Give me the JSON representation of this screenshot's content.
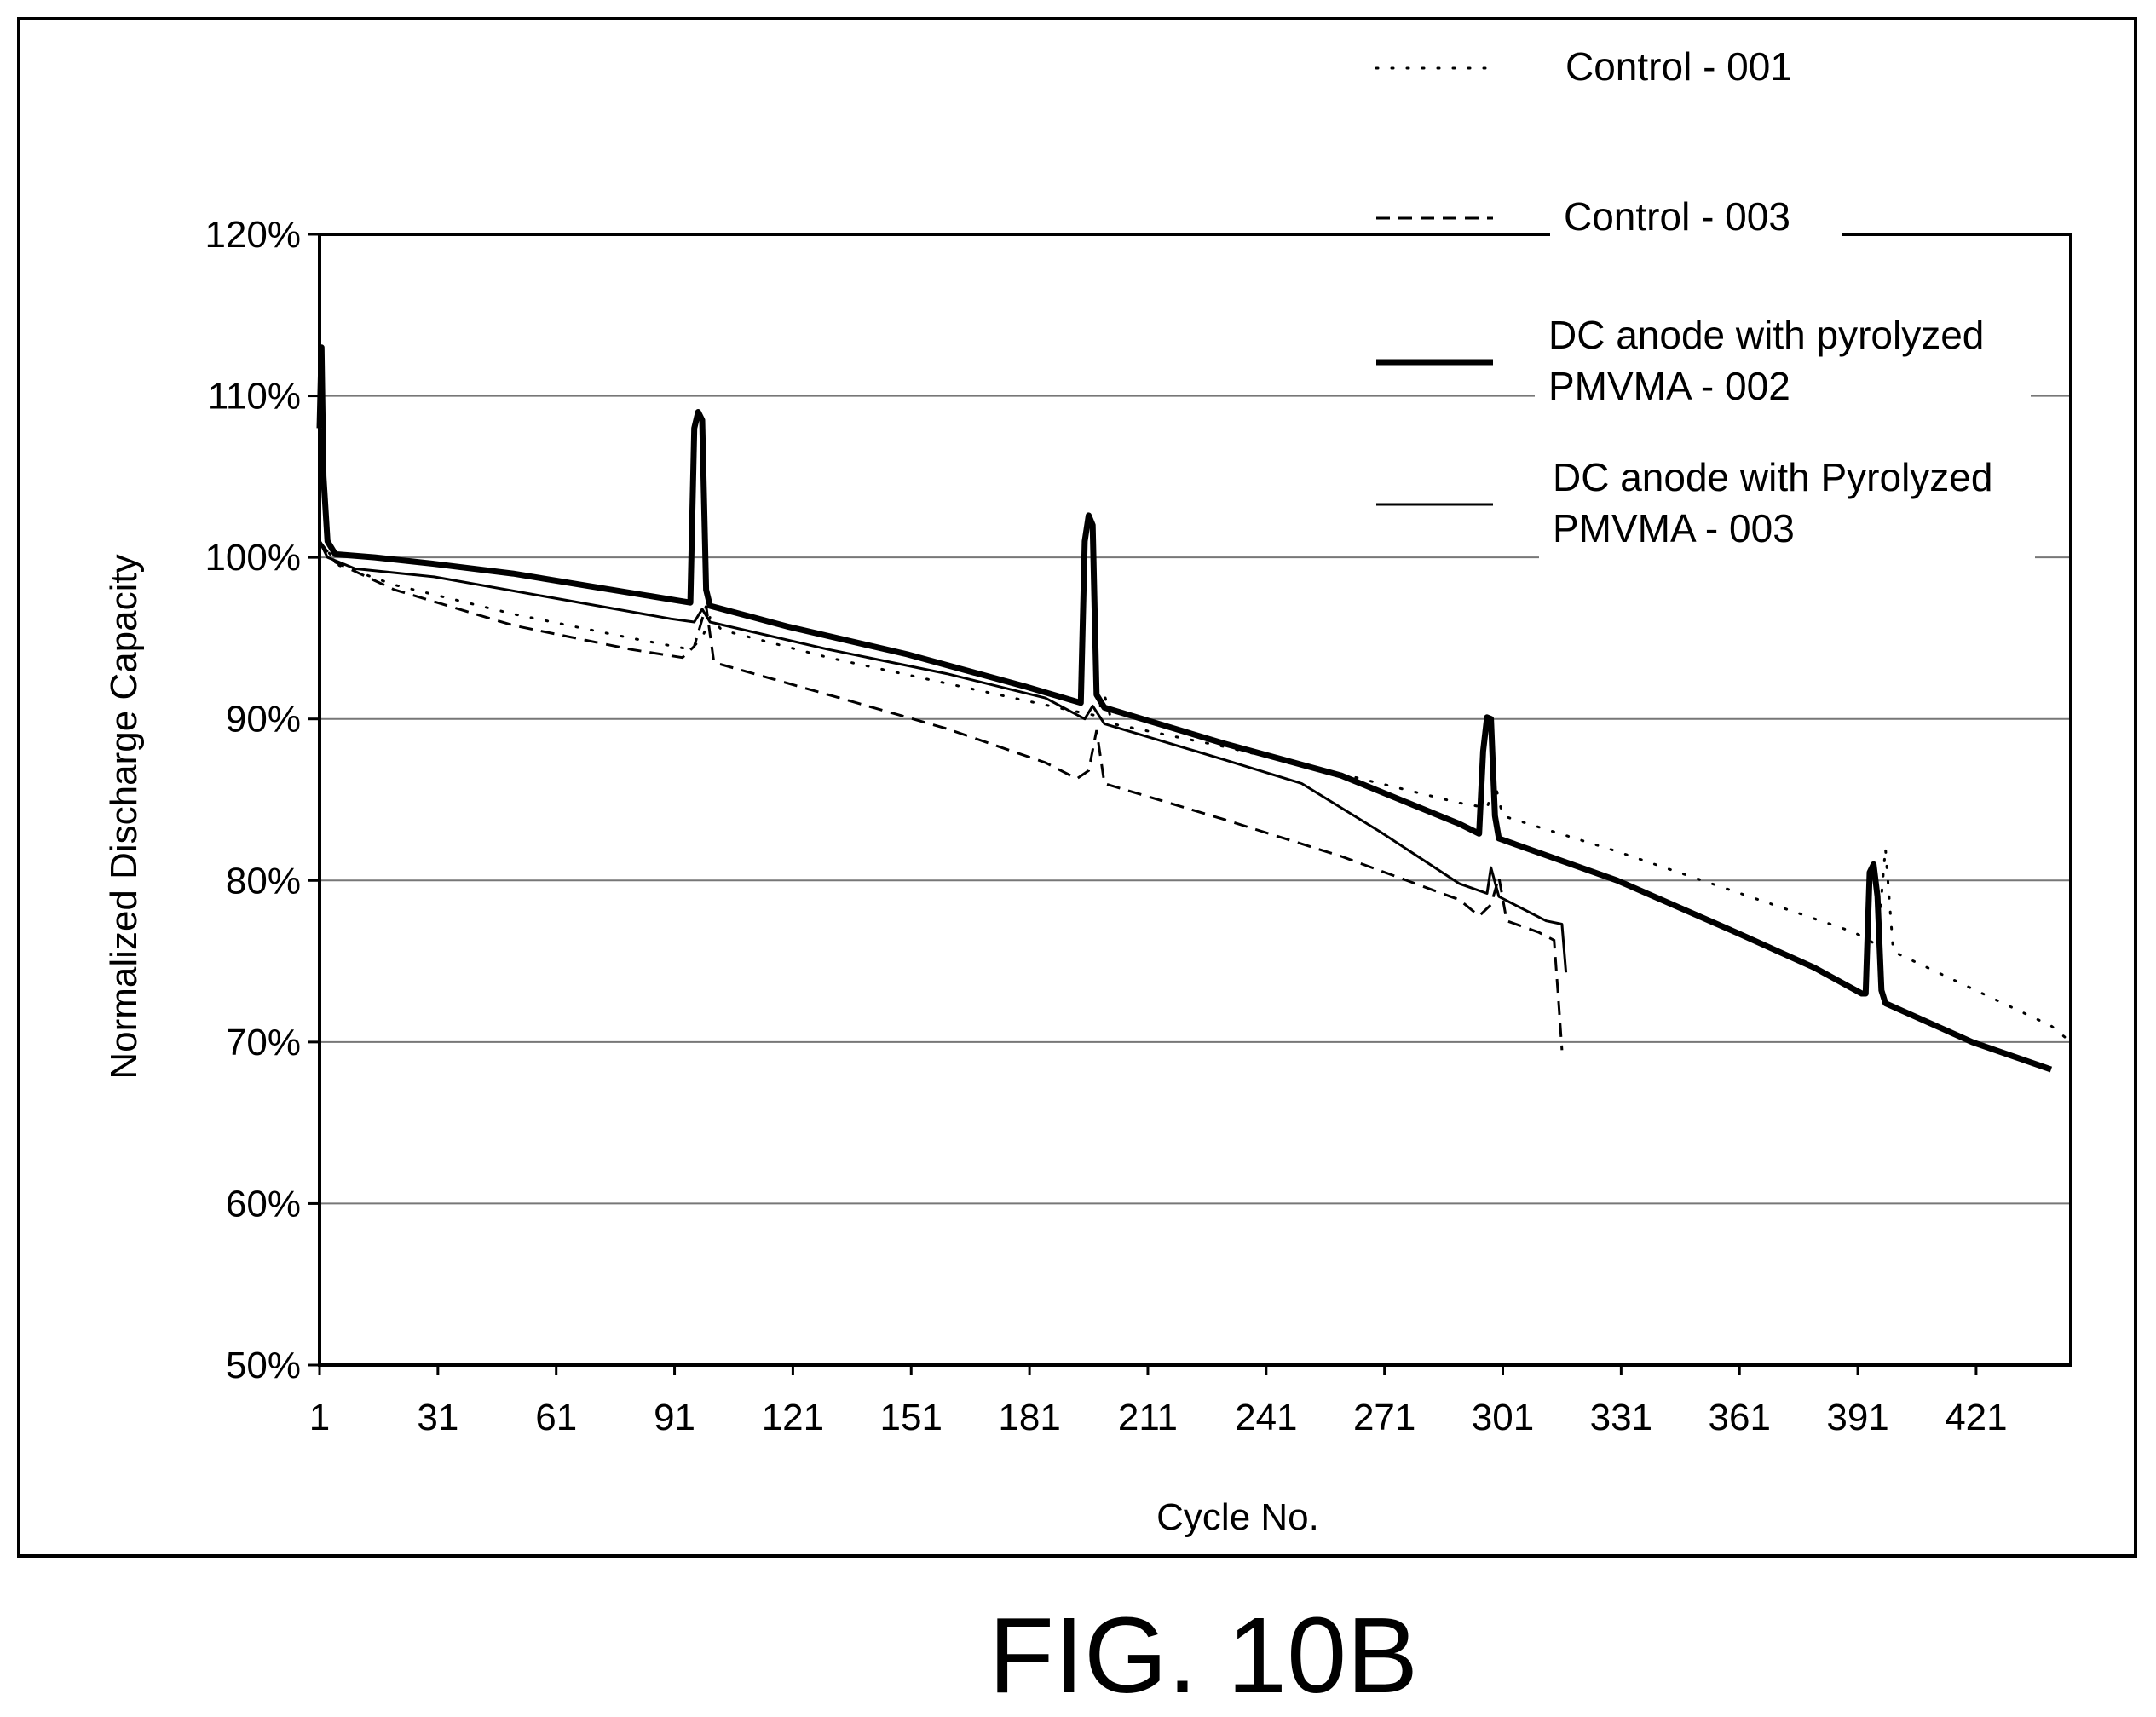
{
  "figure_label": "FIG. 10B",
  "chart_data": {
    "type": "line",
    "title": "",
    "xlabel": "Cycle No.",
    "ylabel": "Normalized Discharge Capacity",
    "xlim": [
      1,
      445
    ],
    "ylim": [
      50,
      120
    ],
    "x_ticks": [
      1,
      31,
      61,
      91,
      121,
      151,
      181,
      211,
      241,
      271,
      301,
      331,
      361,
      391,
      421
    ],
    "x_tick_labels": [
      "1",
      "31",
      "61",
      "91",
      "121",
      "151",
      "181",
      "211",
      "241",
      "271",
      "301",
      "331",
      "361",
      "391",
      "421"
    ],
    "y_ticks": [
      50,
      60,
      70,
      80,
      90,
      100,
      110,
      120
    ],
    "y_tick_labels": [
      "50%",
      "60%",
      "70%",
      "80%",
      "90%",
      "100%",
      "110%",
      "120%"
    ],
    "grid": "horizontal",
    "legend_position": "top-right",
    "series": [
      {
        "name": "Control - 001",
        "style": "dotted",
        "color": "#000000",
        "points": [
          [
            1,
            101
          ],
          [
            6,
            99.5
          ],
          [
            20,
            98.3
          ],
          [
            50,
            96.5
          ],
          [
            80,
            95.0
          ],
          [
            95,
            94.3
          ],
          [
            98,
            95.0
          ],
          [
            100,
            96.3
          ],
          [
            103,
            95.5
          ],
          [
            130,
            93.8
          ],
          [
            160,
            92.2
          ],
          [
            190,
            90.6
          ],
          [
            198,
            90.2
          ],
          [
            200,
            91.5
          ],
          [
            202,
            89.7
          ],
          [
            230,
            88.3
          ],
          [
            260,
            86.6
          ],
          [
            290,
            84.8
          ],
          [
            297,
            84.5
          ],
          [
            299,
            86.0
          ],
          [
            301,
            84.0
          ],
          [
            330,
            81.8
          ],
          [
            360,
            79.3
          ],
          [
            390,
            76.8
          ],
          [
            396,
            76.0
          ],
          [
            398,
            82.0
          ],
          [
            400,
            75.6
          ],
          [
            420,
            73.3
          ],
          [
            440,
            71.0
          ],
          [
            445,
            70.0
          ]
        ]
      },
      {
        "name": "Control - 003",
        "style": "dashed",
        "color": "#000000",
        "points": [
          [
            1,
            101
          ],
          [
            5,
            99.7
          ],
          [
            20,
            98.0
          ],
          [
            50,
            95.8
          ],
          [
            80,
            94.3
          ],
          [
            93,
            93.8
          ],
          [
            96,
            94.5
          ],
          [
            99,
            97.0
          ],
          [
            101,
            93.5
          ],
          [
            130,
            91.5
          ],
          [
            160,
            89.4
          ],
          [
            185,
            87.3
          ],
          [
            193,
            86.3
          ],
          [
            196,
            86.8
          ],
          [
            198,
            89.3
          ],
          [
            200,
            86.0
          ],
          [
            230,
            83.8
          ],
          [
            260,
            81.5
          ],
          [
            290,
            78.8
          ],
          [
            295,
            77.8
          ],
          [
            298,
            78.5
          ],
          [
            300,
            80.2
          ],
          [
            302,
            77.5
          ],
          [
            310,
            76.8
          ],
          [
            314,
            76.3
          ],
          [
            315,
            73.0
          ],
          [
            316,
            69.5
          ]
        ]
      },
      {
        "name": "DC anode with pyrolyzed PMVMA - 002",
        "style": "thick",
        "color": "#000000",
        "points": [
          [
            1,
            108
          ],
          [
            1.5,
            113
          ],
          [
            2,
            105
          ],
          [
            3,
            101
          ],
          [
            5,
            100.2
          ],
          [
            15,
            100.0
          ],
          [
            30,
            99.6
          ],
          [
            50,
            99.0
          ],
          [
            70,
            98.2
          ],
          [
            90,
            97.4
          ],
          [
            95,
            97.2
          ],
          [
            96,
            108
          ],
          [
            97,
            109
          ],
          [
            98,
            108.5
          ],
          [
            99,
            98
          ],
          [
            100,
            97.0
          ],
          [
            120,
            95.7
          ],
          [
            150,
            94.0
          ],
          [
            180,
            92.0
          ],
          [
            194,
            91.0
          ],
          [
            195,
            101
          ],
          [
            196,
            102.6
          ],
          [
            197,
            102
          ],
          [
            198,
            91.5
          ],
          [
            200,
            90.7
          ],
          [
            230,
            88.5
          ],
          [
            260,
            86.5
          ],
          [
            290,
            83.5
          ],
          [
            295,
            82.9
          ],
          [
            296,
            88
          ],
          [
            297,
            90.1
          ],
          [
            298,
            90
          ],
          [
            299,
            84
          ],
          [
            300,
            82.6
          ],
          [
            330,
            80.0
          ],
          [
            360,
            76.8
          ],
          [
            380,
            74.6
          ],
          [
            392,
            73.0
          ],
          [
            393,
            73.0
          ],
          [
            394,
            80.5
          ],
          [
            395,
            81.0
          ],
          [
            396,
            79.0
          ],
          [
            397,
            73.2
          ],
          [
            398,
            72.4
          ],
          [
            420,
            70.0
          ],
          [
            440,
            68.3
          ]
        ]
      },
      {
        "name": "DC anode with Pyrolyzed PMVMA - 003",
        "style": "thin",
        "color": "#000000",
        "points": [
          [
            1,
            101
          ],
          [
            3,
            100.0
          ],
          [
            10,
            99.3
          ],
          [
            30,
            98.8
          ],
          [
            60,
            97.5
          ],
          [
            90,
            96.2
          ],
          [
            96,
            96.0
          ],
          [
            98,
            96.8
          ],
          [
            100,
            96.0
          ],
          [
            130,
            94.3
          ],
          [
            160,
            92.8
          ],
          [
            185,
            91.3
          ],
          [
            195,
            90.0
          ],
          [
            197,
            90.8
          ],
          [
            200,
            89.7
          ],
          [
            230,
            87.5
          ],
          [
            250,
            86.0
          ],
          [
            270,
            83.0
          ],
          [
            290,
            79.8
          ],
          [
            297,
            79.2
          ],
          [
            298,
            80.8
          ],
          [
            300,
            79.0
          ],
          [
            312,
            77.5
          ],
          [
            316,
            77.3
          ],
          [
            317,
            74.3
          ]
        ]
      }
    ]
  }
}
